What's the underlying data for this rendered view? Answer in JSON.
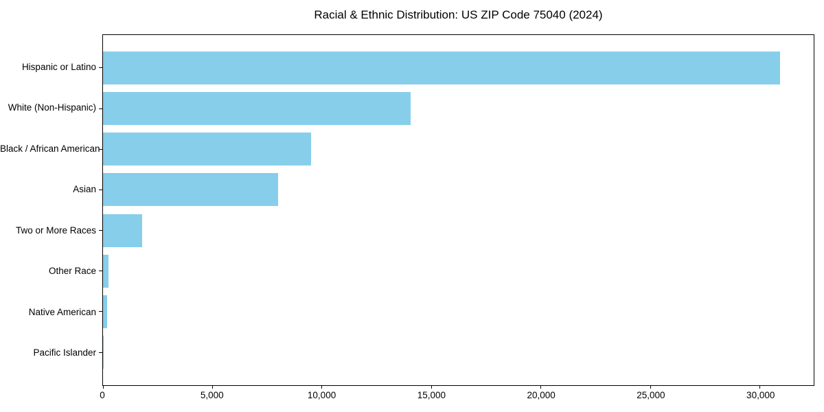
{
  "title": "Racial & Ethnic Distribution: US ZIP Code 75040 (2024)",
  "chart_data": {
    "type": "bar",
    "orientation": "horizontal",
    "title": "Racial & Ethnic Distribution: US ZIP Code 75040 (2024)",
    "categories": [
      "Hispanic or Latino",
      "White (Non-Hispanic)",
      "Black / African American",
      "Asian",
      "Two or More Races",
      "Other Race",
      "Native American",
      "Pacific Islander"
    ],
    "values": [
      30900,
      14050,
      9500,
      8000,
      1800,
      250,
      180,
      30
    ],
    "xlabel": "",
    "ylabel": "",
    "xlim": [
      0,
      32450
    ],
    "x_ticks": [
      {
        "value": 0,
        "label": "0"
      },
      {
        "value": 5000,
        "label": "5,000"
      },
      {
        "value": 10000,
        "label": "10,000"
      },
      {
        "value": 15000,
        "label": "15,000"
      },
      {
        "value": 20000,
        "label": "20,000"
      },
      {
        "value": 25000,
        "label": "25,000"
      },
      {
        "value": 30000,
        "label": "30,000"
      }
    ],
    "grid": false,
    "legend": null,
    "bar_color": "#87CEEB",
    "axis_color": "#000000",
    "text_color": "#000000",
    "background_color": "#FFFFFF"
  }
}
